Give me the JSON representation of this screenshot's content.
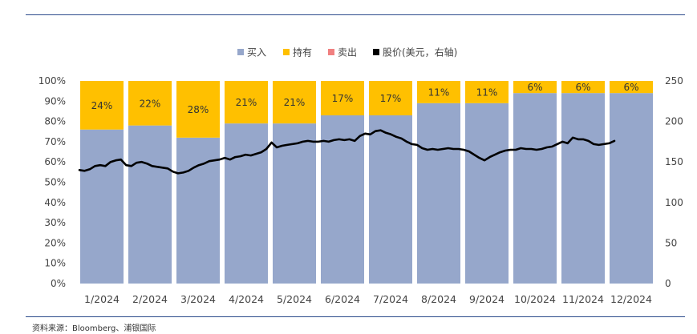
{
  "chart_data": {
    "type": "bar",
    "stacked": true,
    "title": "",
    "categories": [
      "1/2024",
      "2/2024",
      "3/2024",
      "4/2024",
      "5/2024",
      "6/2024",
      "7/2024",
      "8/2024",
      "9/2024",
      "10/2024",
      "11/2024",
      "12/2024"
    ],
    "series": [
      {
        "name": "买入",
        "color": "#96a7cb",
        "values": [
          76,
          78,
          72,
          79,
          79,
          83,
          83,
          89,
          89,
          94,
          94,
          94
        ]
      },
      {
        "name": "持有",
        "color": "#ffc000",
        "values": [
          24,
          22,
          28,
          21,
          21,
          17,
          17,
          11,
          11,
          6,
          6,
          6
        ]
      },
      {
        "name": "卖出",
        "color": "#f08080",
        "values": [
          0,
          0,
          0,
          0,
          0,
          0,
          0,
          0,
          0,
          0,
          0,
          0
        ]
      }
    ],
    "data_labels": [
      "24%",
      "22%",
      "28%",
      "21%",
      "21%",
      "17%",
      "17%",
      "11%",
      "11%",
      "6%",
      "6%",
      "6%"
    ],
    "line_series": {
      "name": "股价(美元，右轴)",
      "color": "#000000",
      "axis": "right",
      "values": [
        140,
        139,
        141,
        145,
        146,
        145,
        150,
        152,
        153,
        146,
        145,
        149,
        150,
        148,
        145,
        144,
        143,
        142,
        138,
        136,
        137,
        139,
        143,
        146,
        148,
        151,
        152,
        153,
        155,
        153,
        156,
        157,
        159,
        158,
        160,
        162,
        166,
        174,
        168,
        170,
        171,
        172,
        173,
        175,
        176,
        175,
        175,
        176,
        175,
        177,
        178,
        177,
        178,
        176,
        182,
        185,
        184,
        188,
        189,
        186,
        184,
        181,
        179,
        175,
        172,
        171,
        167,
        165,
        166,
        165,
        166,
        167,
        166,
        166,
        165,
        163,
        159,
        155,
        152,
        156,
        159,
        162,
        164,
        165,
        165,
        167,
        166,
        166,
        165,
        166,
        168,
        169,
        172,
        175,
        173,
        180,
        178,
        178,
        176,
        172,
        171,
        172,
        173,
        176
      ]
    },
    "y_left": {
      "ticks": [
        "0%",
        "10%",
        "20%",
        "30%",
        "40%",
        "50%",
        "60%",
        "70%",
        "80%",
        "90%",
        "100%"
      ],
      "range": [
        0,
        100
      ]
    },
    "y_right": {
      "ticks": [
        "0",
        "50",
        "100",
        "150",
        "200",
        "250"
      ],
      "range": [
        0,
        250
      ]
    },
    "legend_position": "top-center"
  },
  "source": "资料来源：Bloomberg、浦银国际"
}
